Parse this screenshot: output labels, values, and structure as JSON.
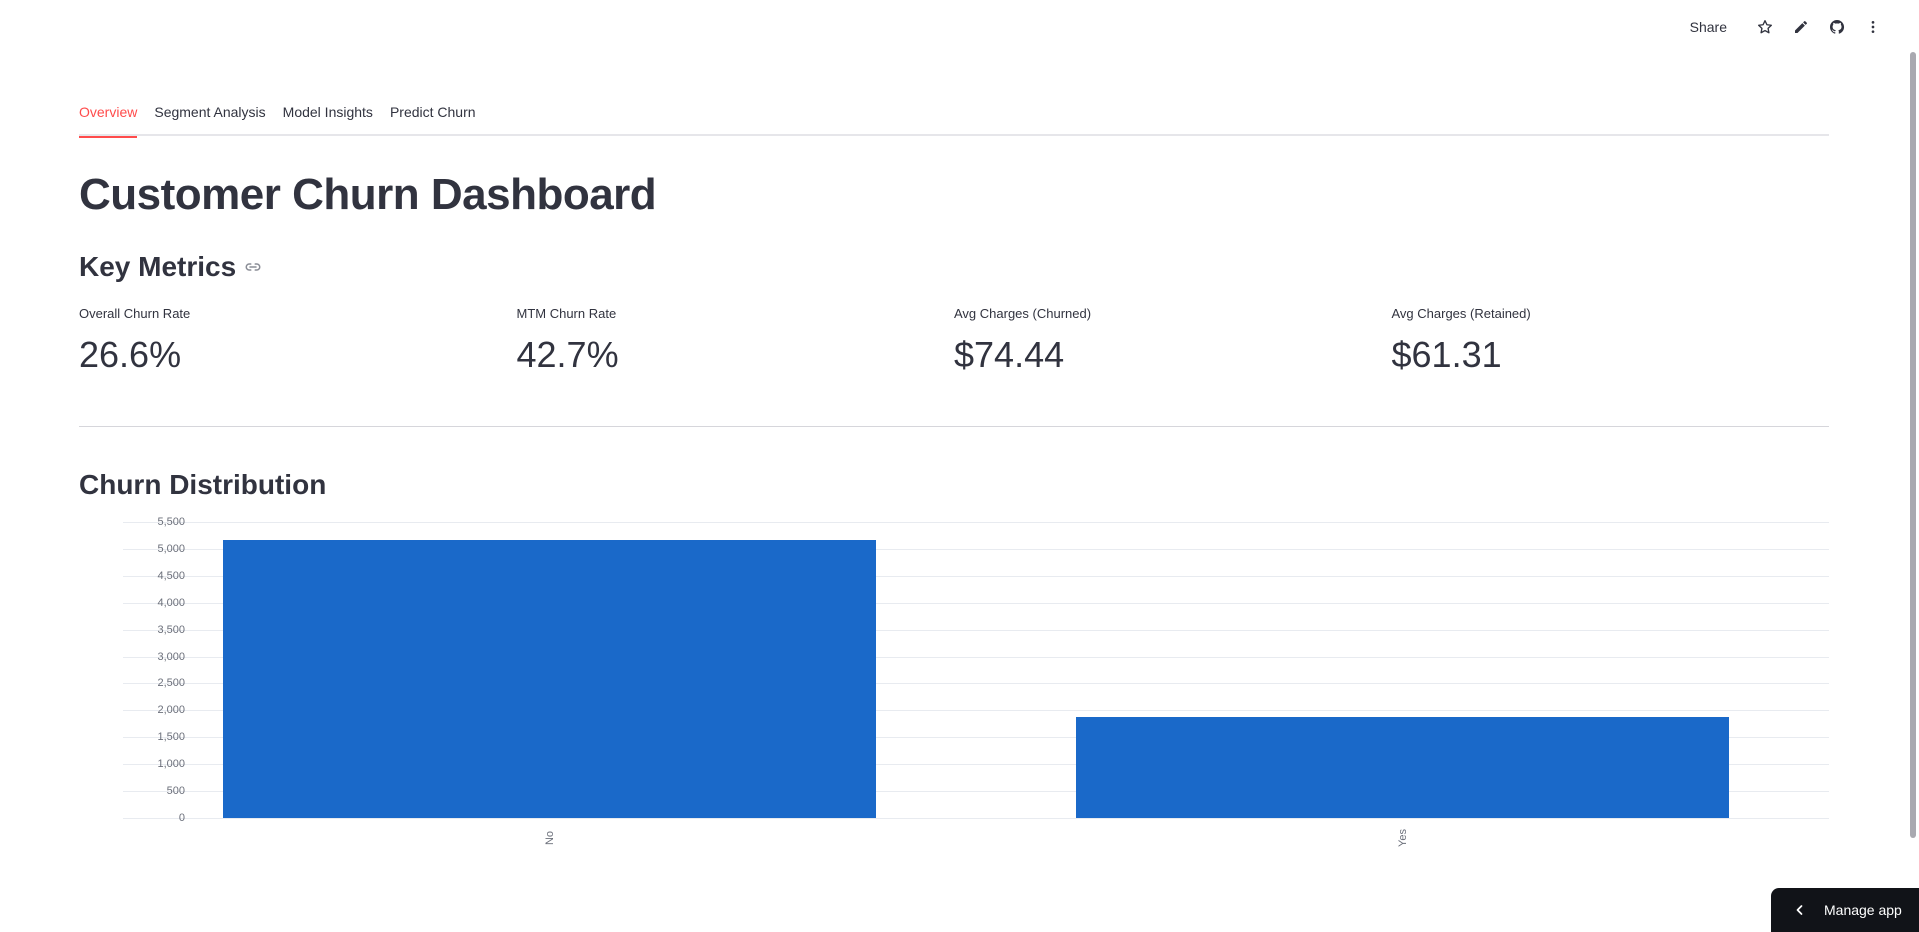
{
  "toolbar": {
    "share_label": "Share",
    "icons": [
      "star-icon",
      "pencil-icon",
      "github-icon",
      "more-vertical-icon"
    ]
  },
  "tabs": [
    {
      "label": "Overview",
      "active": true
    },
    {
      "label": "Segment Analysis",
      "active": false
    },
    {
      "label": "Model Insights",
      "active": false
    },
    {
      "label": "Predict Churn",
      "active": false
    }
  ],
  "page": {
    "title": "Customer Churn Dashboard"
  },
  "key_metrics": {
    "title": "Key Metrics",
    "link_icon": "link-icon",
    "items": [
      {
        "label": "Overall Churn Rate",
        "value": "26.6%"
      },
      {
        "label": "MTM Churn Rate",
        "value": "42.7%"
      },
      {
        "label": "Avg Charges (Churned)",
        "value": "$74.44"
      },
      {
        "label": "Avg Charges (Retained)",
        "value": "$61.31"
      }
    ]
  },
  "churn_distribution": {
    "title": "Churn Distribution"
  },
  "chart_data": {
    "type": "bar",
    "title": "Churn Distribution",
    "categories": [
      "No",
      "Yes"
    ],
    "values": [
      5174,
      1869
    ],
    "xlabel": "",
    "ylabel": "",
    "ylim": [
      0,
      5500
    ],
    "yticks": [
      "0",
      "500",
      "1,000",
      "1,500",
      "2,000",
      "2,500",
      "3,000",
      "3,500",
      "4,000",
      "4,500",
      "5,000",
      "5,500"
    ],
    "grid": true,
    "legend": null,
    "bar_color": "#1a69c9"
  },
  "manage_app": {
    "label": "Manage app",
    "icon": "chevron-left-icon"
  },
  "colors": {
    "accent": "#ff4b4b",
    "text": "#31333f",
    "bar": "#1a69c9"
  }
}
